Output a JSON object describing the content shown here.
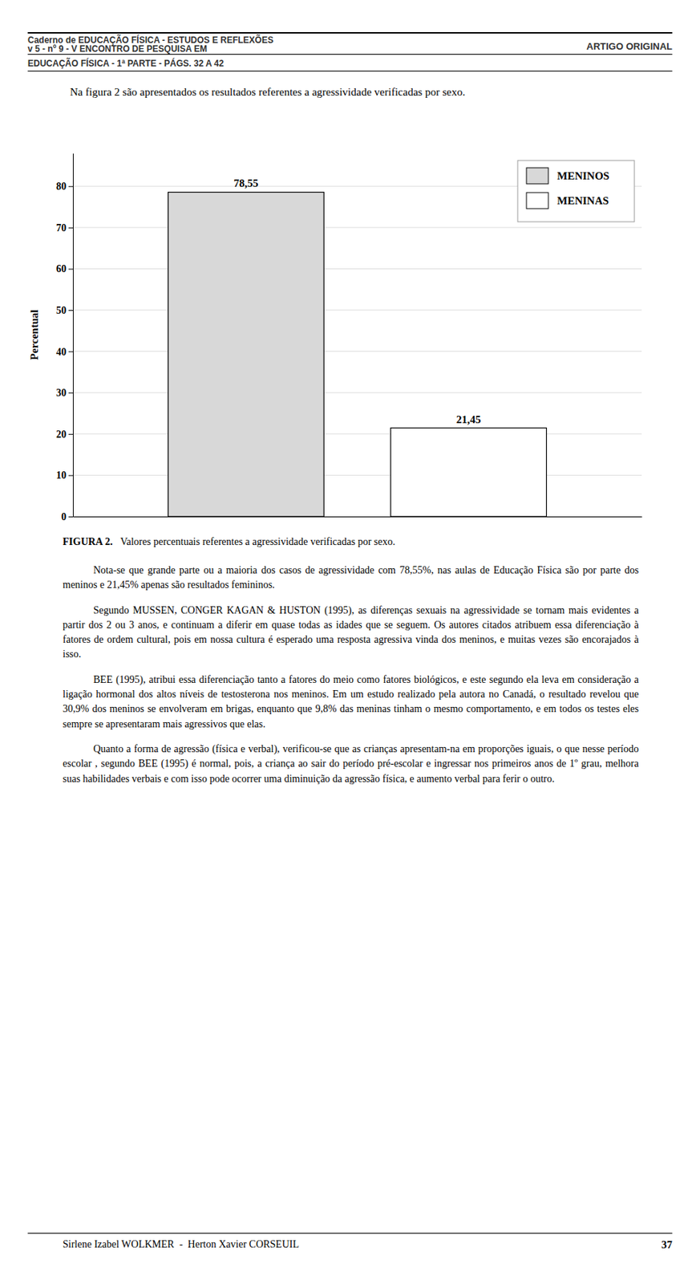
{
  "header_lines": [
    "Caderno de EDUCAÇÃO FÍSICA - ESTUDOS E REFLEXÕES",
    "v 5 - nº 9 - V ENCONTRO DE PESQUISA EM",
    "EDUCAÇÃO FÍSICA - 1ª PARTE - PÁGS. 32 A 42"
  ],
  "header_right": "ARTIGO ORIGINAL",
  "intro_text": "Na figura 2 são apresentados os resultados referentes a agressividade verificadas por sexo.",
  "figure_label": "FIGURA 2.",
  "figure_caption": "Valores percentuais referentes a agressividade verificadas por sexo.",
  "paragraphs": [
    "Nota-se que grande parte ou a maioria dos casos de agressividade com 78,55%, nas aulas de Educação Física são por parte dos meninos e 21,45% apenas são resultados femininos.",
    "Segundo MUSSEN, CONGER KAGAN & HUSTON (1995), as diferenças sexuais na agressividade se tornam mais evidentes a partir dos 2 ou 3 anos, e continuam a diferir em quase todas as idades que se seguem. Os autores citados atribuem essa diferenciação à fatores de ordem cultural, pois em nossa cultura é esperado uma resposta agressiva vinda dos meninos, e muitas vezes são encorajados à isso.",
    "BEE (1995), atribui essa diferenciação tanto a fatores do meio como fatores biológicos, e este segundo ela leva em consideração a ligação hormonal dos altos níveis de testosterona nos meninos. Em um estudo realizado pela autora no Canadá, o resultado revelou que 30,9% dos meninos se envolveram em brigas, enquanto que 9,8% das meninas tinham o mesmo comportamento, e em todos os testes eles sempre se apresentaram mais agressivos que elas.",
    "Quanto a forma de agressão (física e verbal), verificou-se que as crianças apresentam-na em proporções iguais, o que nesse período escolar , segundo BEE (1995) é normal, pois, a criança ao sair do período pré-escolar e ingressar nos primeiros anos de 1º grau, melhora suas habilidades verbais e com isso pode ocorrer uma diminuição da agressão física, e aumento verbal para ferir o outro."
  ],
  "footer_text": "Sirlene Izabel WOLKMER  -  Herton Xavier CORSEUIL",
  "footer_page": "37",
  "chart_data": {
    "type": "bar",
    "y_label": "Percentual",
    "categories": [
      null
    ],
    "series": [
      {
        "name": "MENINOS",
        "color": "#d8d8d8",
        "values": [
          78.55
        ],
        "value_labels": [
          "78,55"
        ]
      },
      {
        "name": "MENINAS",
        "color": "#ffffff",
        "values": [
          21.45
        ],
        "value_labels": [
          "21,45"
        ]
      }
    ],
    "ylim": [
      0,
      88
    ],
    "yticks": [
      0,
      10,
      20,
      30,
      40,
      50,
      60,
      70,
      80
    ],
    "grid": true,
    "legend": "top-right",
    "data_labels": true
  }
}
